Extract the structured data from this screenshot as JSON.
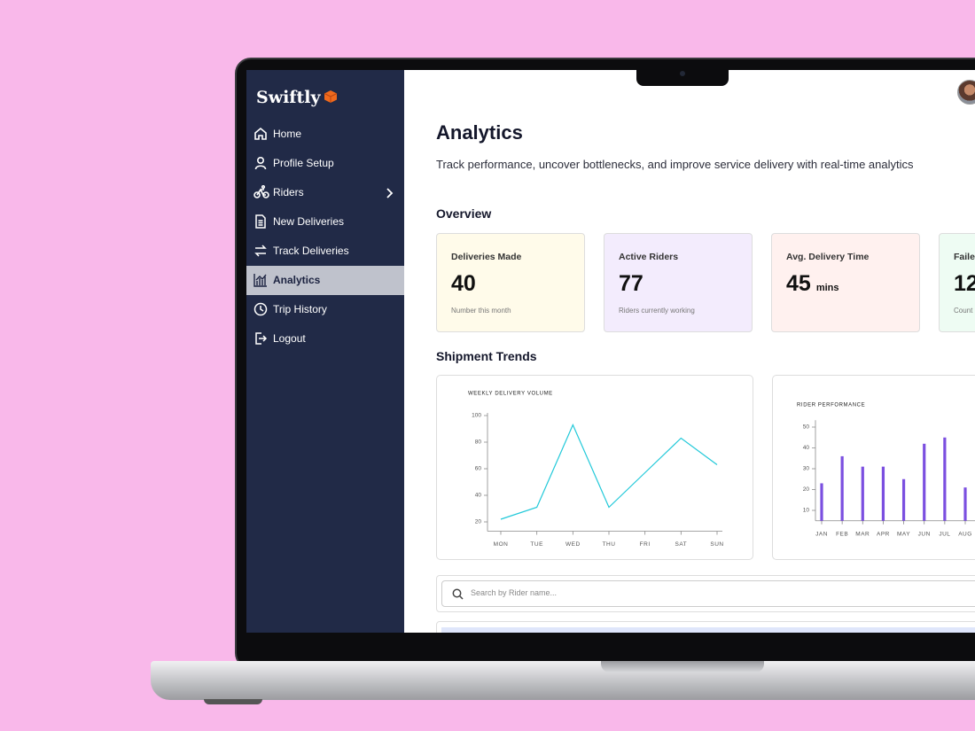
{
  "sidebar": {
    "logo": "Swiftly",
    "menu": [
      "Home",
      "Profile Setup",
      "Riders",
      "New Deliveries",
      "Track Deliveries",
      "Analytics",
      "Trip History",
      "Logout"
    ]
  },
  "header": {
    "title": "Analytics",
    "subtitle": "Track performance, uncover bottlenecks, and improve service delivery with real-time analytics"
  },
  "overview": {
    "title": "Overview",
    "cards": [
      {
        "label": "Deliveries Made",
        "value": 40,
        "note": "Number this month"
      },
      {
        "label": "Active Riders",
        "value": 77,
        "note": "Riders currently working"
      },
      {
        "label": "Avg. Delivery Time",
        "value": 45,
        "unit": "mins"
      },
      {
        "label": "Faile",
        "value": 12,
        "note": "Count"
      }
    ]
  },
  "trends": {
    "title": "Shipment Trends"
  },
  "search": {
    "placeholder": "Search by Rider name..."
  },
  "chart_data": [
    {
      "type": "line",
      "title": "WEEKLY DELIVERY VOLUME",
      "color": "#22c9d9",
      "categories": [
        "MON",
        "TUE",
        "WED",
        "THU",
        "FRI",
        "SAT",
        "SUN"
      ],
      "values": [
        22,
        31,
        93,
        31,
        57,
        83,
        63
      ],
      "ylim": [
        13,
        100
      ],
      "yticks": [
        20,
        40,
        60,
        80,
        100
      ]
    },
    {
      "type": "bar",
      "title": "RIDER PERFORMANCE",
      "color": "#7b4fe0",
      "categories": [
        "JAN",
        "FEB",
        "MAR",
        "APR",
        "MAY",
        "JUN",
        "JUL",
        "AUG"
      ],
      "values": [
        23,
        36,
        31,
        31,
        25,
        42,
        45,
        21
      ],
      "ylim": [
        5,
        52
      ],
      "yticks": [
        10,
        20,
        30,
        40,
        50
      ]
    }
  ]
}
